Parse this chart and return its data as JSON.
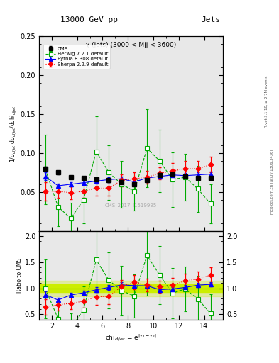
{
  "title_top": "13000 GeV pp",
  "title_right": "Jets",
  "plot_title": "χ (jets) (3000 < Mjj < 3600)",
  "watermark": "CMS_2017_I1519995",
  "ylabel_main": "1/σ$_{dijet}$ dσ$_{dijet}$/dchi$_{dijet}$",
  "ylabel_ratio": "Ratio to CMS",
  "xlabel": "chi$_{dijet}$ = e$^{|y_1-y_2|}$",
  "right_label": "Rivet 3.1.10, ≥ 2.7M events",
  "right_label2": "mcplots.cern.ch [arXiv:1306.3436]",
  "cms_x": [
    1.5,
    2.5,
    3.5,
    4.5,
    5.5,
    6.5,
    7.5,
    8.5,
    9.5,
    10.5,
    11.5,
    12.5,
    13.5,
    14.5
  ],
  "cms_y": [
    0.08,
    0.075,
    0.069,
    0.068,
    0.066,
    0.065,
    0.063,
    0.06,
    0.065,
    0.072,
    0.073,
    0.07,
    0.068,
    0.068
  ],
  "cms_yerr": [
    0.003,
    0.002,
    0.002,
    0.002,
    0.002,
    0.002,
    0.002,
    0.002,
    0.002,
    0.002,
    0.002,
    0.002,
    0.002,
    0.002
  ],
  "herwig_x": [
    1.5,
    2.5,
    3.5,
    4.5,
    5.5,
    6.5,
    7.5,
    8.5,
    9.5,
    10.5,
    11.5,
    12.5,
    13.5,
    14.5
  ],
  "herwig_y": [
    0.079,
    0.031,
    0.016,
    0.04,
    0.102,
    0.075,
    0.06,
    0.051,
    0.106,
    0.09,
    0.066,
    0.069,
    0.054,
    0.035
  ],
  "herwig_yerr": [
    0.045,
    0.025,
    0.02,
    0.03,
    0.045,
    0.035,
    0.03,
    0.025,
    0.05,
    0.04,
    0.035,
    0.03,
    0.03,
    0.025
  ],
  "pythia_x": [
    1.5,
    2.5,
    3.5,
    4.5,
    5.5,
    6.5,
    7.5,
    8.5,
    9.5,
    10.5,
    11.5,
    12.5,
    13.5,
    14.5
  ],
  "pythia_y": [
    0.07,
    0.058,
    0.06,
    0.062,
    0.064,
    0.066,
    0.067,
    0.063,
    0.068,
    0.07,
    0.072,
    0.071,
    0.072,
    0.073
  ],
  "pythia_yerr": [
    0.005,
    0.003,
    0.003,
    0.003,
    0.003,
    0.003,
    0.003,
    0.003,
    0.003,
    0.003,
    0.003,
    0.003,
    0.003,
    0.003
  ],
  "sherpa_x": [
    1.5,
    2.5,
    3.5,
    4.5,
    5.5,
    6.5,
    7.5,
    8.5,
    9.5,
    10.5,
    11.5,
    12.5,
    13.5,
    14.5
  ],
  "sherpa_y": [
    0.051,
    0.051,
    0.049,
    0.051,
    0.055,
    0.055,
    0.065,
    0.067,
    0.069,
    0.074,
    0.077,
    0.08,
    0.08,
    0.085
  ],
  "sherpa_yerr": [
    0.012,
    0.008,
    0.008,
    0.008,
    0.01,
    0.01,
    0.008,
    0.008,
    0.008,
    0.008,
    0.01,
    0.01,
    0.01,
    0.01
  ],
  "cms_band_low": 0.92,
  "cms_band_high": 1.08,
  "cms_band_color": "#ccee00",
  "cms_line_color": "#44aa00",
  "ylim_main": [
    0.0,
    0.25
  ],
  "ylim_ratio": [
    0.4,
    2.1
  ],
  "xlim": [
    1.0,
    15.5
  ],
  "xticks": [
    2,
    4,
    6,
    8,
    10,
    12,
    14
  ],
  "yticks_main": [
    0.05,
    0.1,
    0.15,
    0.2,
    0.25
  ],
  "yticks_ratio": [
    0.5,
    1.0,
    1.5,
    2.0
  ],
  "color_cms": "black",
  "color_herwig": "#00aa00",
  "color_pythia": "blue",
  "color_sherpa": "red",
  "bg_color": "#e8e8e8"
}
